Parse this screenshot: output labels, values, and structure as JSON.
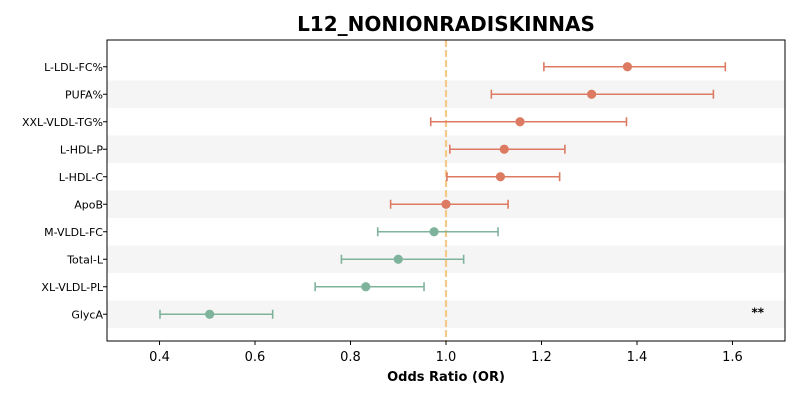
{
  "chart_data": {
    "type": "forest",
    "title": "L12_NONIONRADISKINNAS",
    "xlabel": "Odds Ratio (OR)",
    "xlim": [
      0.29,
      1.71
    ],
    "xticks": [
      0.4,
      0.6,
      0.8,
      1.0,
      1.2,
      1.4,
      1.6
    ],
    "xtick_labels": [
      "0.4",
      "0.6",
      "0.8",
      "1.0",
      "1.2",
      "1.4",
      "1.6"
    ],
    "reference_line": 1.0,
    "grid": false,
    "colors": {
      "above": "#dd7a62",
      "below": "#7fb39c",
      "reference": "#f5c98a",
      "band": "#f5f5f5"
    },
    "items": [
      {
        "label": "L-LDL-FC%",
        "or": 1.38,
        "ci_low": 1.205,
        "ci_high": 1.585,
        "sig": ""
      },
      {
        "label": "PUFA%",
        "or": 1.305,
        "ci_low": 1.095,
        "ci_high": 1.56,
        "sig": ""
      },
      {
        "label": "XXL-VLDL-TG%",
        "or": 1.155,
        "ci_low": 0.968,
        "ci_high": 1.378,
        "sig": ""
      },
      {
        "label": "L-HDL-P",
        "or": 1.122,
        "ci_low": 1.008,
        "ci_high": 1.249,
        "sig": ""
      },
      {
        "label": "L-HDL-C",
        "or": 1.114,
        "ci_low": 1.002,
        "ci_high": 1.238,
        "sig": ""
      },
      {
        "label": "ApoB",
        "or": 1.0,
        "ci_low": 0.884,
        "ci_high": 1.13,
        "sig": ""
      },
      {
        "label": "M-VLDL-FC",
        "or": 0.975,
        "ci_low": 0.857,
        "ci_high": 1.109,
        "sig": ""
      },
      {
        "label": "Total-L",
        "or": 0.9,
        "ci_low": 0.781,
        "ci_high": 1.037,
        "sig": ""
      },
      {
        "label": "XL-VLDL-PL",
        "or": 0.832,
        "ci_low": 0.726,
        "ci_high": 0.954,
        "sig": ""
      },
      {
        "label": "GlycA",
        "or": 0.505,
        "ci_low": 0.401,
        "ci_high": 0.637,
        "sig": "**"
      }
    ]
  }
}
